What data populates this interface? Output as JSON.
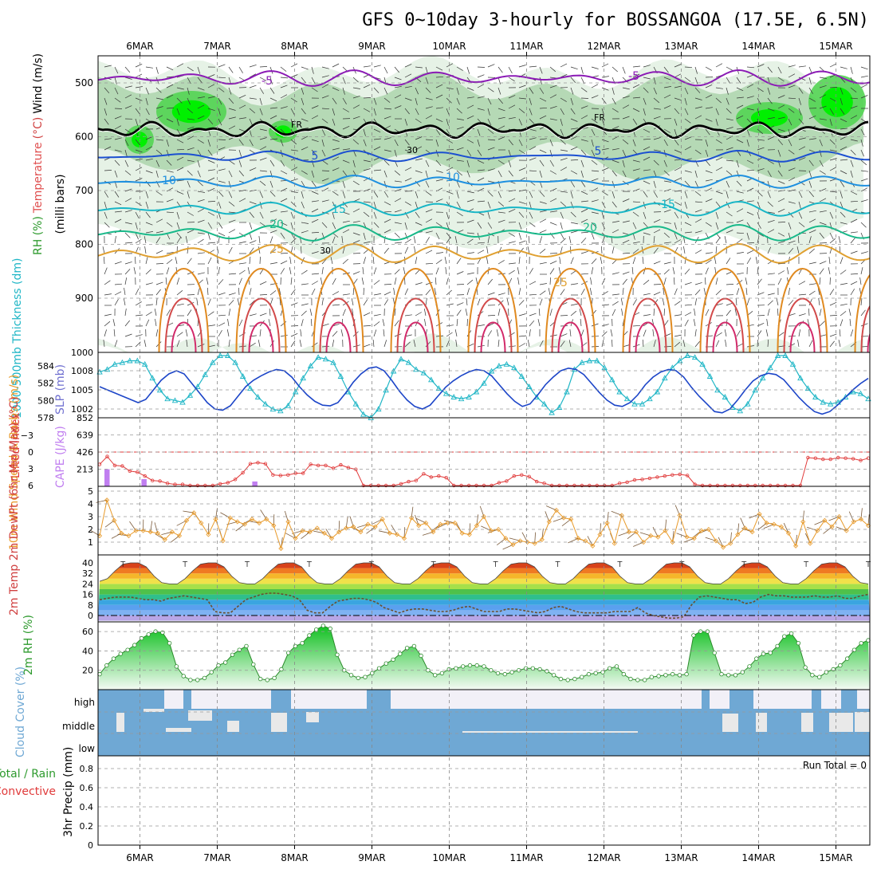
{
  "chart_data": {
    "type": "meteogram",
    "title": "GFS 0~10day 3-hourly for BOSSANGOA (17.5E, 6.5N)",
    "x_dates": [
      "6MAR",
      "7MAR",
      "8MAR",
      "9MAR",
      "10MAR",
      "11MAR",
      "12MAR",
      "13MAR",
      "14MAR",
      "15MAR"
    ],
    "panels": {
      "upper_air": {
        "ylabel_parts": [
          "RH (%)",
          "Temperature",
          "(°C)",
          "Wind",
          "(m/s)"
        ],
        "ylabel_unit": "(milli bars)",
        "pressure_ticks": [
          500,
          600,
          700,
          800,
          900
        ],
        "temperature_contour_labels": [
          "-5",
          "-5",
          "5",
          "5",
          "10",
          "10",
          "15",
          "15",
          "20",
          "20",
          "25",
          "25"
        ],
        "freezing_level_label": "FR",
        "rh_contour_label": "30",
        "colors": {
          "rh_light": "#e6f2e6",
          "rh_mid": "#b5d9b5",
          "rh_high": "#53d453",
          "rh_max": "#00f000",
          "freezing": "#000000"
        }
      },
      "thickness_slp": {
        "ylabel_left": "1000-500mb Thickness (dm)",
        "ylabel_right": "SLP (mb)",
        "thickness_ticks": [
          "578",
          "580",
          "582",
          "584"
        ],
        "slp_ticks": [
          "1002",
          "1005",
          "1008",
          "1000"
        ],
        "thickness_values": [
          583.3,
          583.6,
          584.2,
          584.4,
          584.6,
          584.6,
          584.2,
          582.6,
          581.2,
          580.2,
          580,
          579.8,
          580.6,
          581.6,
          583,
          584.4,
          585.2,
          585.2,
          584.4,
          582.8,
          581.4,
          580.4,
          579.6,
          579,
          578.8,
          579.4,
          581,
          582.6,
          584,
          585,
          584.8,
          584.4,
          582.8,
          581,
          579.6,
          578.4,
          578,
          579,
          581.2,
          583.4,
          584.8,
          584.4,
          583.6,
          583.2,
          582.4,
          581.4,
          580.8,
          580.4,
          580.2,
          580.4,
          581,
          582,
          583.4,
          584,
          584.2,
          583.8,
          582.8,
          581.6,
          580.4,
          579.6,
          578.6,
          579.2,
          581,
          583.6,
          584.4,
          584.6,
          584.6,
          583.8,
          582.4,
          581,
          580.2,
          579.6,
          579.6,
          580.2,
          581,
          582.6,
          583.8,
          584.6,
          585.2,
          585,
          584.2,
          582.8,
          581.2,
          580.4,
          579.2,
          578.8,
          579.6,
          581.2,
          582.6,
          583.8,
          585.2,
          585.2,
          584.2,
          582.6,
          581.4,
          580.4,
          579.8,
          579.6,
          579.8,
          580.4,
          581,
          580.8,
          580.2
        ],
        "slp_values": [
          1005.5,
          1005,
          1004.5,
          1004,
          1003.5,
          1003,
          1003.5,
          1005,
          1006.5,
          1007.5,
          1008,
          1007.5,
          1006,
          1004.5,
          1003,
          1002,
          1001.8,
          1002.5,
          1004,
          1005.5,
          1006.5,
          1007.2,
          1007.8,
          1008.2,
          1008,
          1007,
          1005.5,
          1004.2,
          1003.2,
          1002.6,
          1002.5,
          1003,
          1004.5,
          1006.2,
          1007.5,
          1008.4,
          1008.6,
          1008,
          1006.5,
          1004.8,
          1003.4,
          1002.4,
          1002,
          1002.6,
          1004,
          1005.4,
          1006.4,
          1007.2,
          1007.8,
          1008.2,
          1008,
          1007.2,
          1005.8,
          1004.4,
          1003.2,
          1002.4,
          1002.8,
          1004.2,
          1005.8,
          1007,
          1008,
          1008.4,
          1008.2,
          1007.4,
          1006,
          1004.6,
          1003.4,
          1002.6,
          1002.4,
          1003,
          1004.2,
          1005.8,
          1007,
          1007.8,
          1008.2,
          1008,
          1007,
          1005.4,
          1004,
          1002.8,
          1001.6,
          1001.4,
          1002,
          1003.4,
          1005,
          1006.4,
          1007.2,
          1007.6,
          1007.4,
          1006.6,
          1005.2,
          1003.8,
          1002.6,
          1001.6,
          1001.2,
          1001.6,
          1002.6,
          1003.8,
          1005,
          1006,
          1006.8
        ]
      },
      "stability": {
        "ylabel_left": "Lifted Index",
        "ylabel_right": "CAPE (J/kg)",
        "li_ticks": [
          "-3",
          "0",
          "3",
          "6"
        ],
        "cape_ticks": [
          "213",
          "426",
          "639",
          "852"
        ],
        "cape_values": [
          0,
          213,
          0,
          0,
          0,
          0,
          90,
          0,
          0,
          0,
          0,
          0,
          0,
          0,
          0,
          0,
          0,
          0,
          0,
          0,
          0,
          60,
          0,
          0,
          0,
          0,
          0,
          0,
          0,
          0,
          0,
          0,
          0,
          0,
          0,
          0,
          0,
          0,
          0,
          0,
          0,
          0,
          0,
          0,
          0,
          0,
          0,
          0,
          0,
          0,
          0,
          0,
          0,
          0,
          0,
          0,
          0,
          0,
          0,
          0,
          0,
          0,
          0,
          0,
          0,
          0,
          0,
          0,
          0,
          0,
          0,
          0,
          0,
          0,
          0,
          0,
          0,
          0,
          0,
          0,
          0,
          0,
          0,
          0,
          0,
          0,
          0,
          0,
          0,
          0,
          0,
          0,
          0,
          0,
          0,
          0,
          0,
          0,
          0,
          0,
          0,
          0,
          0,
          0,
          0
        ],
        "li_values": [
          2.2,
          0.8,
          2.4,
          2.5,
          3.4,
          3.6,
          4.3,
          5.1,
          5.2,
          5.6,
          5.8,
          5.8,
          6,
          6,
          6,
          6,
          5.7,
          5.5,
          4.9,
          3.7,
          2.1,
          1.9,
          2.1,
          4.1,
          4.2,
          4.1,
          3.8,
          3.8,
          2.2,
          2.4,
          2.4,
          2.9,
          2.3,
          2.8,
          3.1,
          6,
          6,
          6,
          6,
          6,
          5.7,
          5.3,
          5.1,
          3.9,
          4.5,
          4.3,
          4.6,
          6,
          6,
          6,
          6,
          6,
          6,
          5.5,
          5.2,
          4.3,
          4.1,
          4.4,
          5.3,
          5.6,
          6,
          6,
          6,
          6,
          6,
          6,
          6,
          6,
          6,
          5.6,
          5.4,
          5,
          4.9,
          4.7,
          4.5,
          4.3,
          4.1,
          4,
          4.2,
          5.8,
          6,
          6,
          6,
          6,
          6,
          6,
          6,
          6,
          6,
          6,
          6,
          6,
          6,
          6,
          1,
          1.1,
          1.3,
          1.3,
          1,
          1.1,
          1.2,
          1.5,
          1.1
        ]
      },
      "wind10m": {
        "ylabel": "10m Wind Speed & Barbs (m/s)",
        "yticks": [
          "1",
          "2",
          "3",
          "4",
          "5"
        ],
        "values": [
          1.5,
          4.3,
          2.7,
          1.7,
          1.5,
          1.9,
          1.9,
          1.8,
          1.7,
          1.2,
          1.8,
          1.5,
          2.7,
          3.3,
          2.5,
          1.6,
          2.8,
          1.1,
          2.9,
          2.6,
          2.4,
          2.8,
          2.5,
          2.8,
          2.3,
          0.5,
          2.6,
          1.3,
          1.9,
          1.8,
          2.1,
          1.7,
          1.3,
          1.8,
          2.1,
          2.2,
          1.8,
          2.4,
          2.2,
          2.8,
          1.7,
          1.6,
          1.3,
          2.9,
          2.3,
          2.5,
          1.8,
          2.4,
          2.5,
          2.5,
          1.7,
          1.6,
          2.3,
          3,
          1.9,
          2,
          1.3,
          0.8,
          1.1,
          1,
          0.9,
          1.2,
          2.6,
          3.5,
          2.9,
          2.8,
          1.3,
          1.1,
          0.7,
          1.6,
          2.5,
          0.9,
          3.1,
          1.8,
          1.8,
          1,
          1.5,
          1.4,
          1.9,
          1,
          3.1,
          1.4,
          1.3,
          1.9,
          2,
          1.1,
          0.6,
          0.9,
          1.6,
          2.1,
          1.8,
          3.2,
          2.5,
          2.4,
          2.2,
          1.7,
          0.7,
          2.6,
          0.9,
          1.9,
          2.7,
          2.2,
          3,
          1.9,
          2.6,
          2.8,
          2.3
        ]
      },
      "temp2m": {
        "ylabel": "2m Temp 2m DewPt (6hr Min/Max) (°C)",
        "yticks": [
          "0",
          "8",
          "16",
          "24",
          "32",
          "40"
        ],
        "temp_values": [
          26,
          28,
          34,
          39,
          40,
          40,
          37,
          30,
          25,
          24,
          24,
          28,
          34,
          39,
          40,
          40,
          37,
          30,
          25,
          24,
          24,
          28,
          34,
          39,
          40,
          40,
          37,
          30,
          25,
          24,
          24,
          28,
          34,
          39,
          40,
          40,
          37,
          30,
          25,
          24,
          24,
          28,
          34,
          39,
          40,
          40,
          37,
          30,
          25,
          24,
          24,
          28,
          34,
          39,
          40,
          40,
          37,
          30,
          25,
          24,
          24,
          28,
          34,
          39,
          40,
          40,
          37,
          30,
          25,
          24,
          24,
          28,
          34,
          39,
          40,
          40,
          37,
          30,
          25,
          24,
          24,
          28,
          34,
          39,
          40,
          40,
          37,
          30,
          25,
          24,
          24,
          28,
          34,
          39,
          40,
          40,
          37,
          30,
          25,
          24
        ],
        "dewpt_values": [
          12,
          13,
          14,
          14,
          14,
          13,
          12,
          12,
          11,
          13,
          14,
          15,
          14,
          13,
          12,
          3,
          2,
          2,
          7,
          12,
          14,
          16,
          17,
          17,
          16,
          15,
          12,
          4,
          2,
          2,
          7,
          11,
          12,
          13,
          13,
          12,
          10,
          6,
          4,
          2,
          4,
          5,
          5,
          4,
          3,
          3,
          4,
          6,
          7,
          5,
          3,
          3,
          3,
          5,
          5,
          4,
          3,
          2,
          3,
          6,
          7,
          5,
          3,
          2,
          2,
          2,
          2,
          3,
          3,
          3,
          6,
          2,
          0,
          -1,
          -2,
          -2,
          -1,
          8,
          14,
          15,
          14,
          13,
          12,
          12,
          9,
          10,
          14,
          16,
          15,
          15,
          14,
          14,
          14,
          15,
          14,
          14,
          15,
          13,
          13,
          15,
          16
        ]
      },
      "rh2m": {
        "ylabel": "2m RH (%)",
        "yticks": [
          "20",
          "40",
          "60"
        ],
        "values": [
          16,
          25,
          32,
          37,
          41,
          46,
          53,
          57,
          60,
          59,
          48,
          24,
          14,
          10,
          10,
          12,
          18,
          25,
          28,
          36,
          41,
          45,
          26,
          11,
          10,
          12,
          21,
          38,
          45,
          48,
          56,
          62,
          66,
          63,
          36,
          20,
          15,
          12,
          13,
          17,
          22,
          27,
          31,
          37,
          43,
          45,
          35,
          20,
          15,
          17,
          21,
          22,
          24,
          25,
          25,
          24,
          20,
          17,
          16,
          18,
          20,
          22,
          22,
          21,
          19,
          15,
          11,
          10,
          11,
          13,
          16,
          17,
          18,
          22,
          24,
          16,
          11,
          10,
          10,
          13,
          14,
          15,
          16,
          15,
          16,
          56,
          60,
          60,
          38,
          16,
          15,
          15,
          18,
          24,
          32,
          37,
          38,
          45,
          55,
          58,
          48,
          23,
          15,
          13,
          18,
          21,
          25,
          32,
          41,
          48,
          51
        ]
      },
      "cloud": {
        "ylabel": "Cloud Cover (%)",
        "levels": [
          "high",
          "middle",
          "low"
        ],
        "color": "#6fa8d4",
        "bg_color": "#e9e9e9"
      },
      "precip": {
        "ylabel_left_1": "Total / Rain",
        "ylabel_left_2": "Convective",
        "ylabel_right": "3hr Precip (mm)",
        "yticks": [
          "0",
          "0.2",
          "0.4",
          "0.6",
          "0.8"
        ],
        "run_total_label": "Run Total = 0",
        "values": []
      }
    }
  }
}
